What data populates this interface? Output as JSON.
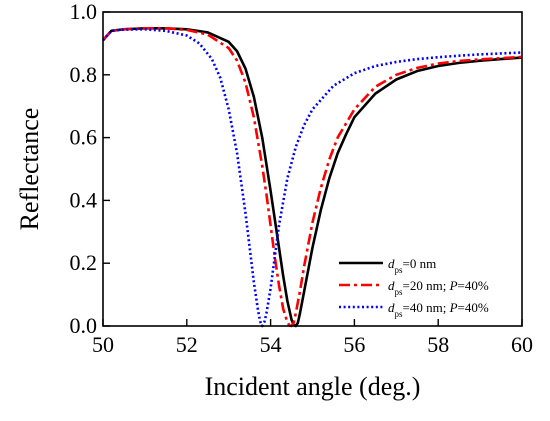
{
  "chart_data": {
    "type": "line",
    "xlabel": "Incident angle (deg.)",
    "ylabel": "Reflectance",
    "xlim": [
      50,
      60
    ],
    "ylim": [
      0.0,
      1.0
    ],
    "xticks": [
      50,
      52,
      54,
      56,
      58,
      60
    ],
    "yticks": [
      0.0,
      0.2,
      0.4,
      0.6,
      0.8,
      1.0
    ],
    "xtick_labels": [
      "50",
      "52",
      "54",
      "56",
      "58",
      "60"
    ],
    "ytick_labels": [
      "0.0",
      "0.2",
      "0.4",
      "0.6",
      "0.8",
      "1.0"
    ],
    "grid": false,
    "legend_position": "bottom-right",
    "series": [
      {
        "legend_parts": [
          {
            "text": "d",
            "italic": true,
            "sub": false
          },
          {
            "text": "ps",
            "italic": false,
            "sub": true
          },
          {
            "text": "=0 nm",
            "italic": false,
            "sub": false
          }
        ],
        "color": "#000000",
        "dash": "solid",
        "x": [
          50,
          50.1,
          50.2,
          50.5,
          51,
          51.5,
          52,
          52.5,
          53,
          53.2,
          53.4,
          53.6,
          53.8,
          54,
          54.1,
          54.2,
          54.3,
          54.4,
          54.5,
          54.55,
          54.6,
          54.65,
          54.7,
          54.8,
          54.9,
          55,
          55.2,
          55.4,
          55.6,
          55.8,
          56,
          56.5,
          57,
          57.5,
          58,
          58.5,
          59,
          59.5,
          60
        ],
        "y": [
          0.91,
          0.925,
          0.94,
          0.945,
          0.948,
          0.948,
          0.945,
          0.935,
          0.905,
          0.875,
          0.82,
          0.73,
          0.6,
          0.43,
          0.34,
          0.25,
          0.16,
          0.08,
          0.02,
          0.004,
          0.0,
          0.01,
          0.04,
          0.11,
          0.18,
          0.25,
          0.37,
          0.47,
          0.55,
          0.61,
          0.665,
          0.74,
          0.785,
          0.812,
          0.828,
          0.838,
          0.845,
          0.85,
          0.855
        ]
      },
      {
        "legend_parts": [
          {
            "text": "d",
            "italic": true,
            "sub": false
          },
          {
            "text": "ps",
            "italic": false,
            "sub": true
          },
          {
            "text": "=20 nm; ",
            "italic": false,
            "sub": false
          },
          {
            "text": "P",
            "italic": true,
            "sub": false
          },
          {
            "text": "=40%",
            "italic": false,
            "sub": false
          }
        ],
        "color": "#ff0000",
        "dash": "dashdot",
        "x": [
          50,
          50.1,
          50.2,
          50.5,
          51,
          51.5,
          52,
          52.5,
          53,
          53.2,
          53.4,
          53.6,
          53.8,
          53.9,
          54,
          54.1,
          54.2,
          54.3,
          54.4,
          54.45,
          54.5,
          54.55,
          54.6,
          54.7,
          54.8,
          55,
          55.2,
          55.4,
          55.6,
          56,
          56.5,
          57,
          57.5,
          58,
          58.5,
          59,
          59.5,
          60
        ],
        "y": [
          0.91,
          0.925,
          0.94,
          0.945,
          0.948,
          0.948,
          0.943,
          0.928,
          0.885,
          0.845,
          0.775,
          0.665,
          0.51,
          0.42,
          0.32,
          0.22,
          0.13,
          0.055,
          0.012,
          0.002,
          0.0,
          0.01,
          0.04,
          0.11,
          0.19,
          0.33,
          0.44,
          0.53,
          0.6,
          0.69,
          0.762,
          0.8,
          0.822,
          0.836,
          0.844,
          0.849,
          0.853,
          0.857
        ]
      },
      {
        "legend_parts": [
          {
            "text": "d",
            "italic": true,
            "sub": false
          },
          {
            "text": "ps",
            "italic": false,
            "sub": true
          },
          {
            "text": "=40 nm; ",
            "italic": false,
            "sub": false
          },
          {
            "text": "P",
            "italic": true,
            "sub": false
          },
          {
            "text": "=40%",
            "italic": false,
            "sub": false
          }
        ],
        "color": "#0000ff",
        "dash": "dotted",
        "x": [
          50,
          50.1,
          50.2,
          50.5,
          51,
          51.5,
          52,
          52.3,
          52.6,
          52.8,
          53,
          53.2,
          53.4,
          53.5,
          53.6,
          53.7,
          53.75,
          53.8,
          53.85,
          53.9,
          54,
          54.1,
          54.2,
          54.4,
          54.6,
          54.8,
          55,
          55.5,
          56,
          56.5,
          57,
          57.5,
          58,
          58.5,
          59,
          59.5,
          60
        ],
        "y": [
          0.91,
          0.925,
          0.94,
          0.944,
          0.945,
          0.94,
          0.925,
          0.9,
          0.85,
          0.79,
          0.69,
          0.55,
          0.36,
          0.25,
          0.14,
          0.05,
          0.015,
          0.0,
          0.012,
          0.04,
          0.12,
          0.22,
          0.32,
          0.47,
          0.57,
          0.64,
          0.69,
          0.765,
          0.805,
          0.828,
          0.841,
          0.85,
          0.856,
          0.861,
          0.865,
          0.868,
          0.871
        ]
      }
    ]
  }
}
